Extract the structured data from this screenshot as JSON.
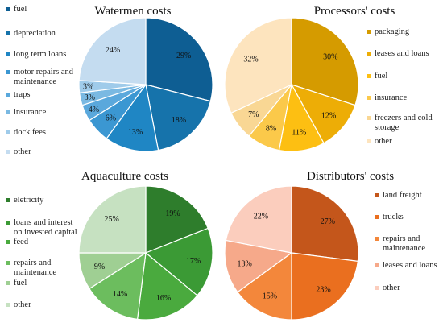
{
  "chart_data": [
    {
      "type": "pie",
      "title": "Watermen costs",
      "legend_position": "left",
      "categories": [
        "fuel",
        "depreciation",
        "long term loans",
        "motor repairs and maintenance",
        "traps",
        "insurance",
        "dock fees",
        "other"
      ],
      "values": [
        29,
        18,
        13,
        6,
        4,
        3,
        3,
        24
      ],
      "labels": [
        "29%",
        "18%",
        "13%",
        "6%",
        "4%",
        "3%",
        "3%",
        "24%"
      ],
      "colors": [
        "#0e5e93",
        "#1673ab",
        "#1f86c4",
        "#3b97d2",
        "#5aa8dc",
        "#7ab9e2",
        "#9fcbea",
        "#c4dcf0"
      ]
    },
    {
      "type": "pie",
      "title": "Processors' costs",
      "legend_position": "right",
      "categories": [
        "packaging",
        "leases and loans",
        "fuel",
        "insurance",
        "freezers and cold storage",
        "other"
      ],
      "values": [
        30,
        12,
        11,
        8,
        7,
        32
      ],
      "labels": [
        "30%",
        "12%",
        "11%",
        "8%",
        "7%",
        "32%"
      ],
      "colors": [
        "#d59b00",
        "#edad06",
        "#fdbf12",
        "#fbc94a",
        "#f9d794",
        "#fde4be"
      ]
    },
    {
      "type": "pie",
      "title": "Aquaculture costs",
      "legend_position": "left",
      "categories": [
        "eletricity",
        "loans and interest on invested capital",
        "feed",
        "repairs and maintenance",
        "fuel",
        "other"
      ],
      "values": [
        19,
        17,
        16,
        14,
        9,
        25
      ],
      "labels": [
        "19%",
        "17%",
        "16%",
        "14%",
        "9%",
        "25%"
      ],
      "colors": [
        "#2e7d2c",
        "#3b9a35",
        "#4aaa3e",
        "#6cbd5e",
        "#9fcf93",
        "#c6e1c1"
      ]
    },
    {
      "type": "pie",
      "title": "Distributors' costs",
      "legend_position": "right",
      "categories": [
        "land freight",
        "trucks",
        "repairs and maintenance",
        "leases and loans",
        "other"
      ],
      "values": [
        27,
        23,
        15,
        13,
        22
      ],
      "labels": [
        "27%",
        "23%",
        "15%",
        "13%",
        "22%"
      ],
      "colors": [
        "#c4561b",
        "#ea6f1f",
        "#f3873b",
        "#f6a98a",
        "#fbcdbd"
      ]
    }
  ]
}
